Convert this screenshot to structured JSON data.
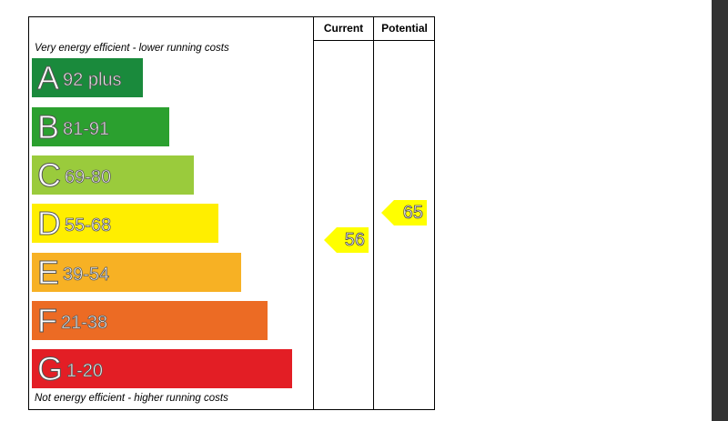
{
  "chart_data": {
    "type": "bar",
    "columns": [
      "Current",
      "Potential"
    ],
    "top_caption": "Very energy efficient - lower running costs",
    "bottom_caption": "Not energy efficient - higher running costs",
    "bands": [
      {
        "letter": "A",
        "range": "92 plus",
        "color": "#1a8a3c"
      },
      {
        "letter": "B",
        "range": "81-91",
        "color": "#2ba02f"
      },
      {
        "letter": "C",
        "range": "69-80",
        "color": "#9acb3c"
      },
      {
        "letter": "D",
        "range": "55-68",
        "color": "#ffee00"
      },
      {
        "letter": "E",
        "range": "39-54",
        "color": "#f7b124"
      },
      {
        "letter": "F",
        "range": "21-38",
        "color": "#ec6b24"
      },
      {
        "letter": "G",
        "range": "1-20",
        "color": "#e31e25"
      }
    ],
    "ratings": [
      {
        "label": "Current",
        "value": 56
      },
      {
        "label": "Potential",
        "value": 65
      }
    ],
    "arrow_color": "#ffff00"
  }
}
